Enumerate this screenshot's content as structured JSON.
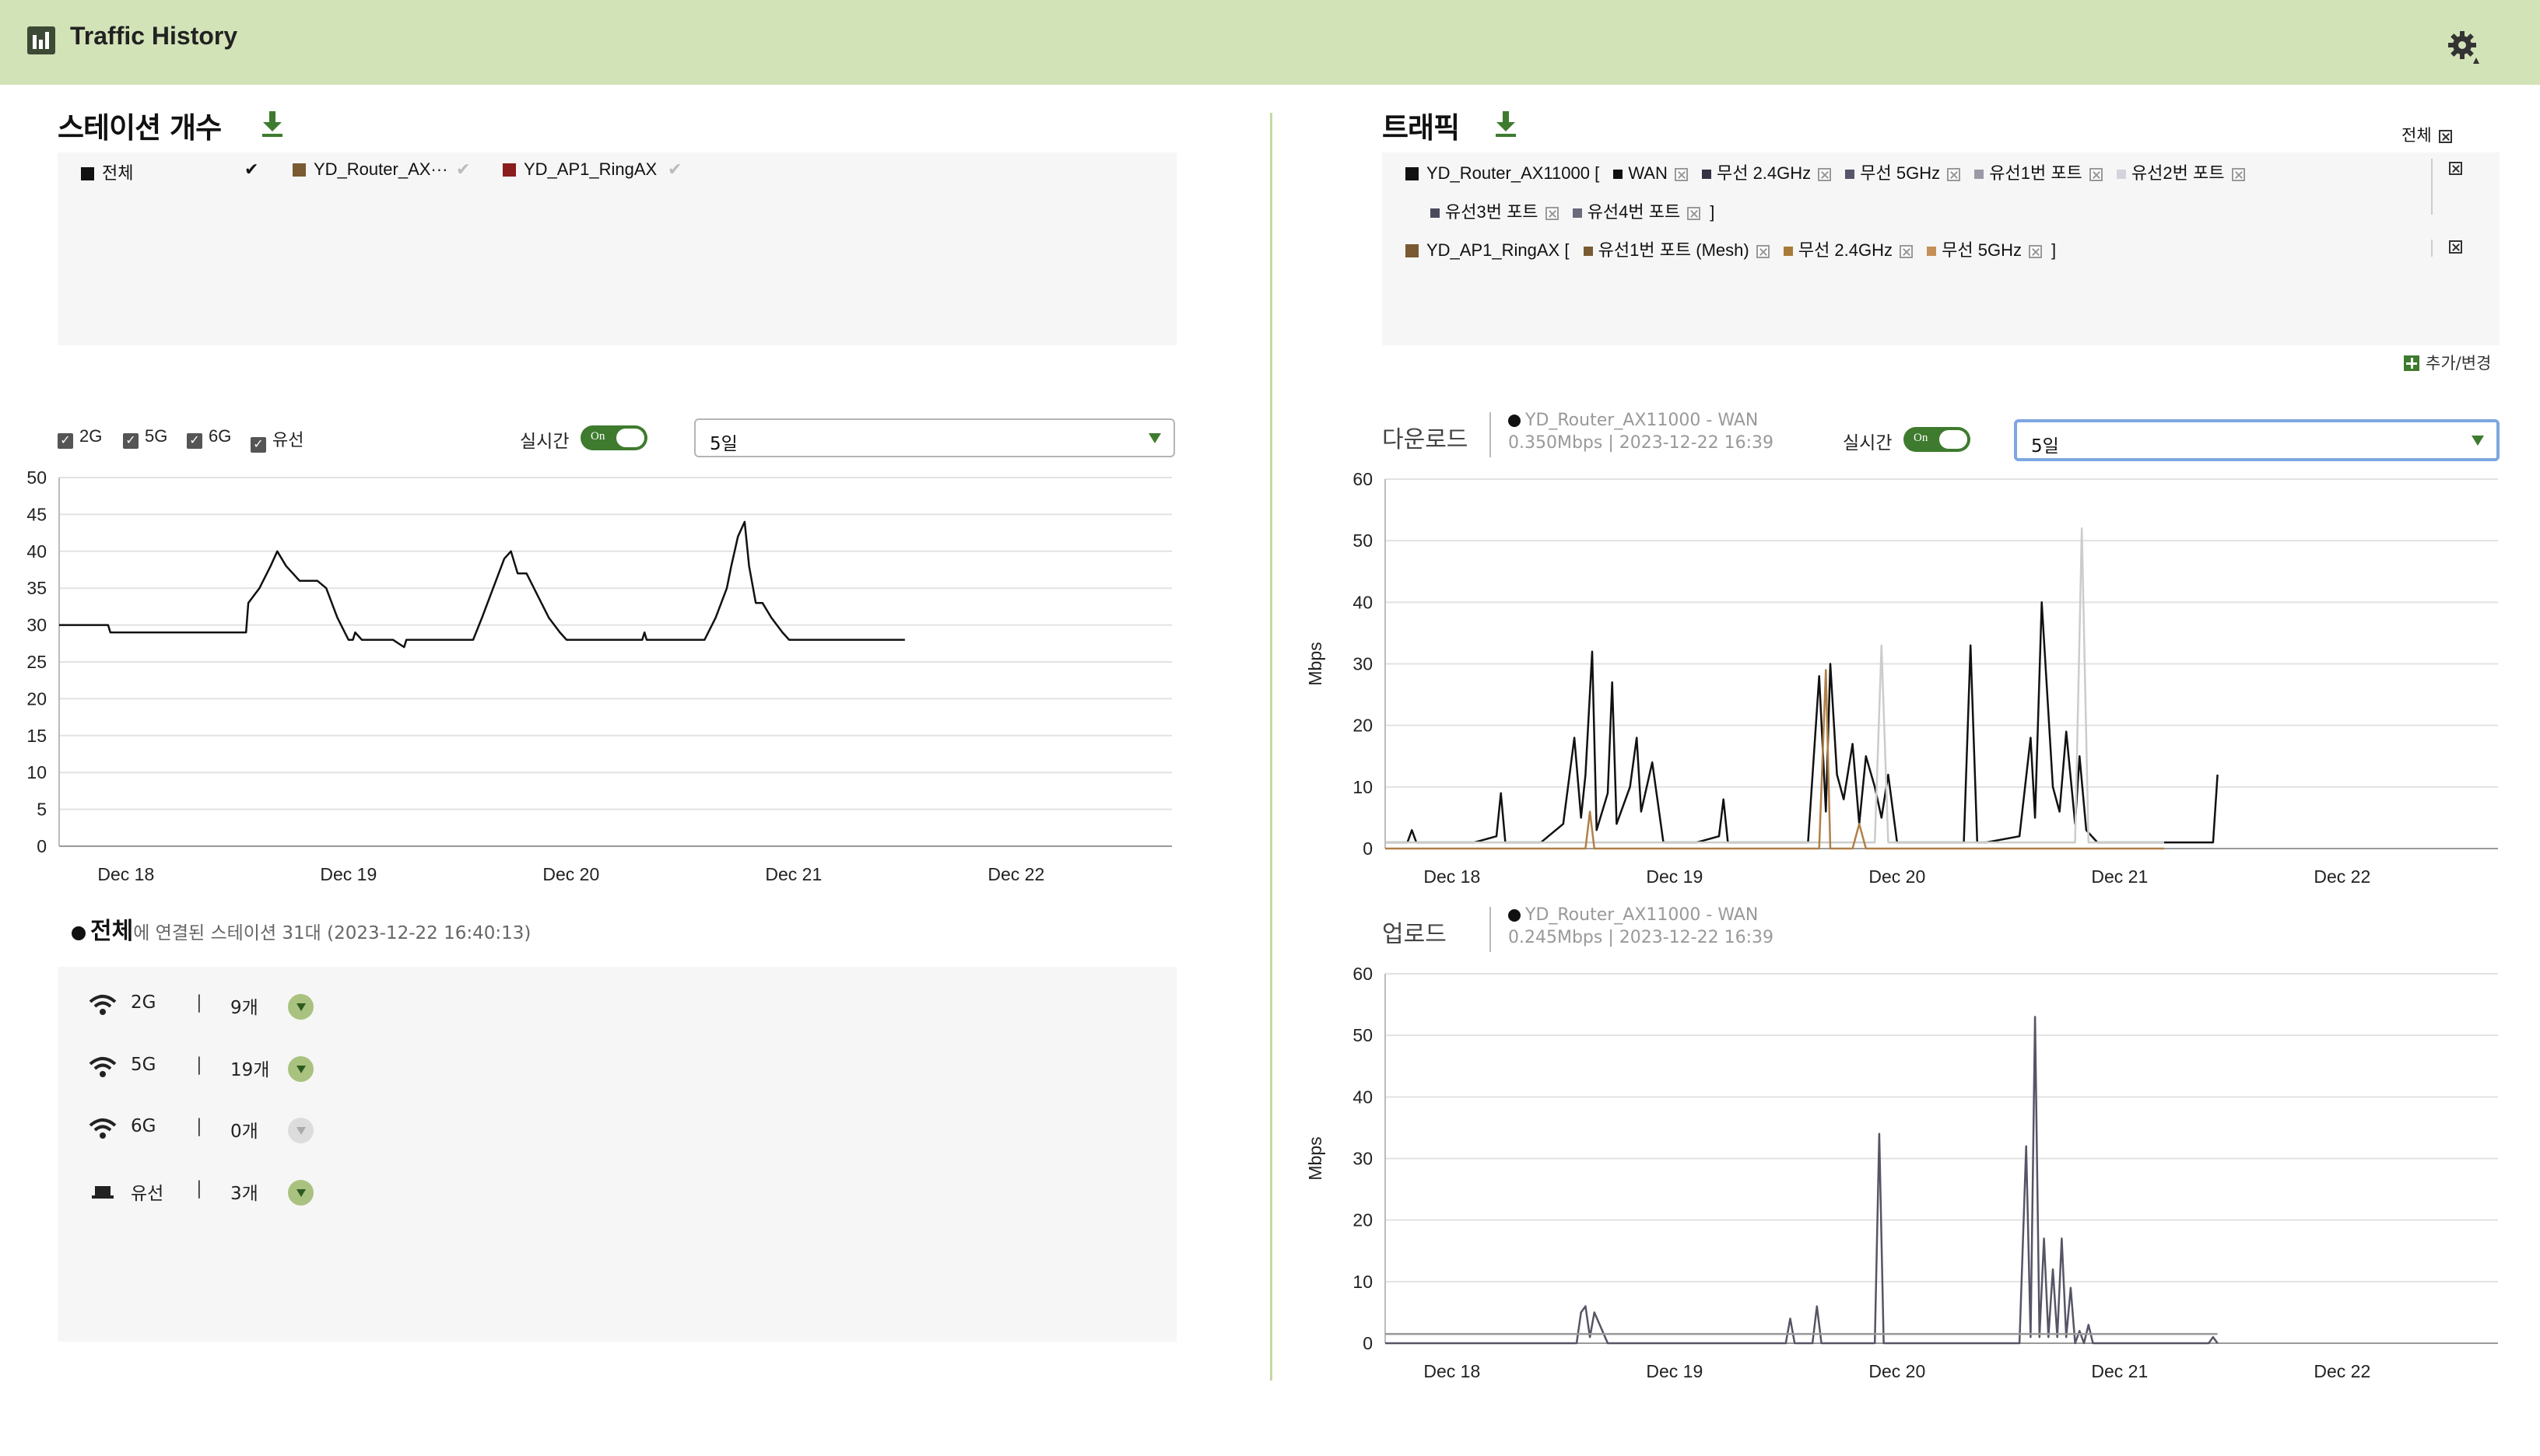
{
  "app": {
    "title": "Traffic History"
  },
  "station": {
    "title": "스테이션 개수",
    "legend": [
      {
        "label": "전체",
        "color": "#111111",
        "checked": true
      },
      {
        "label": "YD_Router_AX···",
        "color": "#7a5a32",
        "checked": true
      },
      {
        "label": "YD_AP1_RingAX",
        "color": "#8b1d1d",
        "checked": true
      }
    ],
    "bands": [
      "2G",
      "5G",
      "6G",
      "유선"
    ],
    "realtime_label": "실시간",
    "toggle_label": "On",
    "period": "5일",
    "summary_name": "전체",
    "summary_text": "에 연결된 스테이션 31대 (2023-12-22 16:40:13)",
    "counts": [
      {
        "name": "2G",
        "count": "9개",
        "icon": "wifi-icon"
      },
      {
        "name": "5G",
        "count": "19개",
        "icon": "wifi-icon"
      },
      {
        "name": "6G",
        "count": "0개",
        "icon": "wifi-icon"
      },
      {
        "name": "유선",
        "count": "3개",
        "icon": "ethernet-icon"
      }
    ],
    "separator": "|"
  },
  "traffic": {
    "title": "트래픽",
    "all_label": "전체",
    "devices": [
      {
        "name": "YD_Router_AX11000",
        "color": "#111111",
        "items": [
          {
            "label": "WAN",
            "color": "#111111"
          },
          {
            "label": "무선 2.4GHz",
            "color": "#333344"
          },
          {
            "label": "무선 5GHz",
            "color": "#55566a"
          },
          {
            "label": "유선1번 포트",
            "color": "#9a9aa6"
          },
          {
            "label": "유선2번 포트",
            "color": "#d4d4dc"
          },
          {
            "label": "유선3번 포트",
            "color": "#4a4a5c"
          },
          {
            "label": "유선4번 포트",
            "color": "#6a6a7c"
          }
        ]
      },
      {
        "name": "YD_AP1_RingAX",
        "color": "#7a5a32",
        "items": [
          {
            "label": "유선1번 포트 (Mesh)",
            "color": "#7a5a32"
          },
          {
            "label": "무선 2.4GHz",
            "color": "#a87a3a"
          },
          {
            "label": "무선 5GHz",
            "color": "#c49058"
          }
        ]
      }
    ],
    "bracket_open": "[",
    "bracket_close": "]",
    "add_label": "추가/변경",
    "realtime_label": "실시간",
    "toggle_label": "On",
    "period": "5일",
    "download": {
      "title": "다운로드",
      "series": "YD_Router_AX11000 - WAN",
      "value": "0.350Mbps | 2023-12-22 16:39"
    },
    "upload": {
      "title": "업로드",
      "series": "YD_Router_AX11000 - WAN",
      "value": "0.245Mbps | 2023-12-22 16:39"
    }
  },
  "chart_data": [
    {
      "type": "line",
      "name": "stations",
      "x_ticks": [
        "Dec 18",
        "Dec 19",
        "Dec 20",
        "Dec 21",
        "Dec 22"
      ],
      "ylim": [
        0,
        50
      ],
      "y_ticks": [
        0,
        5,
        10,
        15,
        20,
        25,
        30,
        35,
        40,
        45,
        50
      ],
      "grid": true,
      "x_domain": [
        17.7,
        22.7
      ],
      "series": [
        {
          "color": "#111111",
          "x": [
            17.7,
            17.92,
            17.93,
            18.54,
            18.55,
            18.6,
            18.65,
            18.68,
            18.72,
            18.75,
            18.78,
            18.82,
            18.86,
            18.9,
            18.95,
            19.0,
            19.02,
            19.03,
            19.06,
            19.1,
            19.13,
            19.2,
            19.25,
            19.26,
            19.29,
            19.3,
            19.38,
            19.56,
            19.6,
            19.65,
            19.7,
            19.73,
            19.76,
            19.8,
            19.85,
            19.9,
            19.95,
            19.98,
            20.0,
            20.04,
            20.32,
            20.33,
            20.34,
            20.6,
            20.65,
            20.7,
            20.72,
            20.75,
            20.78,
            20.8,
            20.83,
            20.86,
            20.9,
            20.95,
            20.98,
            21.0,
            21.5
          ],
          "y": [
            30,
            30,
            29,
            29,
            33,
            35,
            38,
            40,
            38,
            37,
            36,
            36,
            36,
            35,
            31,
            28,
            28,
            29,
            28,
            28,
            28,
            28,
            27,
            28,
            28,
            28,
            28,
            28,
            31,
            35,
            39,
            40,
            37,
            37,
            34,
            31,
            29,
            28,
            28,
            28,
            28,
            29,
            28,
            28,
            31,
            35,
            38,
            42,
            44,
            38,
            33,
            33,
            31,
            29,
            28,
            28,
            28
          ]
        }
      ]
    },
    {
      "type": "line",
      "name": "download",
      "ylabel": "Mbps",
      "x_ticks": [
        "Dec 18",
        "Dec 19",
        "Dec 20",
        "Dec 21",
        "Dec 22"
      ],
      "ylim": [
        0,
        60
      ],
      "y_ticks": [
        0,
        10,
        20,
        30,
        40,
        50,
        60
      ],
      "grid": true,
      "x_domain": [
        17.7,
        22.7
      ],
      "series": [
        {
          "color": "#111111",
          "x": [
            17.7,
            17.8,
            17.82,
            17.84,
            17.95,
            18.1,
            18.2,
            18.22,
            18.24,
            18.4,
            18.5,
            18.55,
            18.58,
            18.6,
            18.63,
            18.65,
            18.7,
            18.72,
            18.74,
            18.8,
            18.83,
            18.85,
            18.9,
            18.95,
            19.0,
            19.1,
            19.2,
            19.22,
            19.24,
            19.4,
            19.6,
            19.65,
            19.68,
            19.7,
            19.73,
            19.76,
            19.8,
            19.83,
            19.86,
            19.9,
            19.93,
            19.96,
            20.0,
            20.1,
            20.3,
            20.33,
            20.36,
            20.4,
            20.55,
            20.6,
            20.62,
            20.65,
            20.7,
            20.73,
            20.76,
            20.8,
            20.82,
            20.85,
            20.9,
            21.0,
            21.2,
            21.3,
            21.4,
            21.42,
            21.44
          ],
          "y": [
            1,
            1,
            3,
            1,
            1,
            1,
            2,
            9,
            1,
            1,
            4,
            18,
            5,
            12,
            32,
            3,
            9,
            27,
            4,
            10,
            18,
            6,
            14,
            1,
            1,
            1,
            2,
            8,
            1,
            1,
            1,
            28,
            6,
            30,
            12,
            8,
            17,
            4,
            15,
            10,
            5,
            12,
            1,
            1,
            1,
            33,
            1,
            1,
            2,
            18,
            5,
            40,
            10,
            6,
            19,
            4,
            15,
            3,
            1,
            1,
            1,
            1,
            1,
            1,
            12
          ]
        },
        {
          "color": "#cccccc",
          "x": [
            17.7,
            19.9,
            19.93,
            19.96,
            20.8,
            20.83,
            20.86,
            21.2
          ],
          "y": [
            1,
            1,
            33,
            1,
            1,
            52,
            1,
            1
          ]
        },
        {
          "color": "#b08048",
          "x": [
            17.7,
            18.6,
            18.62,
            18.64,
            19.65,
            19.68,
            19.7,
            19.8,
            19.83,
            19.86,
            21.2
          ],
          "y": [
            0,
            0,
            6,
            0,
            0,
            29,
            0,
            0,
            4,
            0,
            0
          ]
        }
      ]
    },
    {
      "type": "line",
      "name": "upload",
      "ylabel": "Mbps",
      "x_ticks": [
        "Dec 18",
        "Dec 19",
        "Dec 20",
        "Dec 21",
        "Dec 22"
      ],
      "ylim": [
        0,
        60
      ],
      "y_ticks": [
        0,
        10,
        20,
        30,
        40,
        50,
        60
      ],
      "grid": true,
      "x_domain": [
        17.7,
        22.7
      ],
      "series": [
        {
          "color": "#555566",
          "x": [
            17.7,
            18.56,
            18.58,
            18.6,
            18.62,
            18.64,
            18.7,
            19.5,
            19.52,
            19.54,
            19.62,
            19.64,
            19.66,
            19.8,
            19.9,
            19.92,
            19.94,
            20.2,
            20.55,
            20.58,
            20.6,
            20.62,
            20.64,
            20.66,
            20.68,
            20.7,
            20.72,
            20.74,
            20.76,
            20.78,
            20.8,
            20.82,
            20.84,
            20.86,
            20.88,
            21.0,
            21.4,
            21.42,
            21.44
          ],
          "y": [
            0,
            0,
            5,
            6,
            1,
            5,
            0,
            0,
            4,
            0,
            0,
            6,
            0,
            0,
            0,
            34,
            0,
            0,
            0,
            32,
            1,
            53,
            1,
            17,
            1,
            12,
            1,
            17,
            1,
            9,
            0,
            2,
            0,
            3,
            0,
            0,
            0,
            1,
            0
          ]
        },
        {
          "color": "#999999",
          "x": [
            17.7,
            21.44
          ],
          "y": [
            1.5,
            1.5
          ]
        }
      ]
    }
  ]
}
